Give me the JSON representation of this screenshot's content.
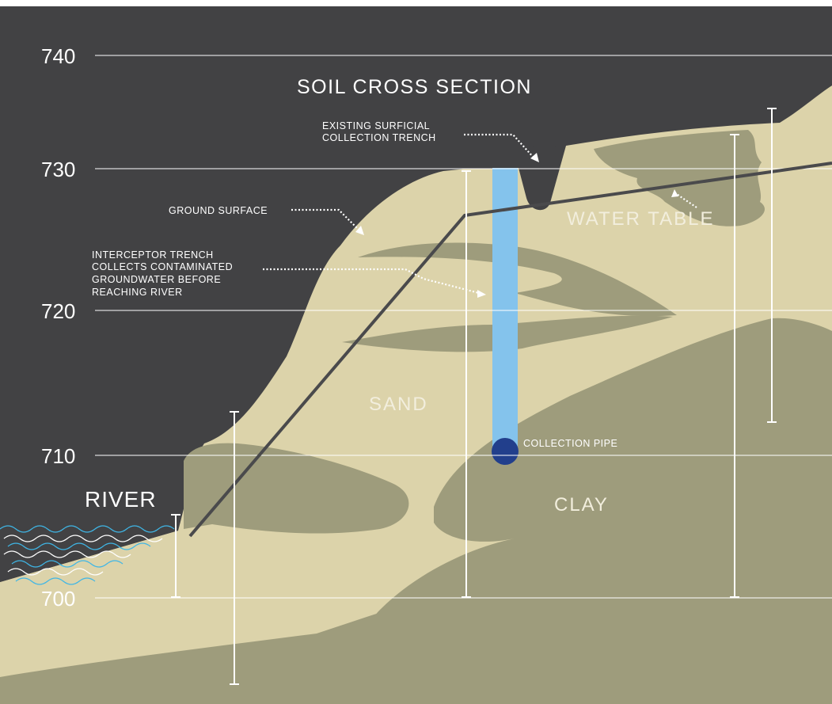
{
  "title": "SOIL CROSS SECTION",
  "elevations": [
    "740",
    "730",
    "720",
    "710",
    "700"
  ],
  "labels": {
    "trench_line1": "EXISTING SURFICIAL",
    "trench_line2": "COLLECTION TRENCH",
    "ground_surface": "GROUND SURFACE",
    "interceptor_line1": "INTERCEPTOR TRENCH",
    "interceptor_line2": "COLLECTS CONTAMINATED",
    "interceptor_line3": "GROUNDWATER BEFORE",
    "interceptor_line4": "REACHING RIVER",
    "water_table": "WATER TABLE",
    "sand": "SAND",
    "clay": "CLAY",
    "collection_pipe": "COLLECTION PIPE",
    "river": "RIVER"
  },
  "colors": {
    "background": "#424244",
    "sand": "#dcd3aa",
    "clay": "#9e9c7c",
    "trench": "#84c3ec",
    "pipe": "#223f8c",
    "water_table_line": "#4a4a4c",
    "waves_blue": "#3fb6e6",
    "waves_white": "#ffffff"
  }
}
